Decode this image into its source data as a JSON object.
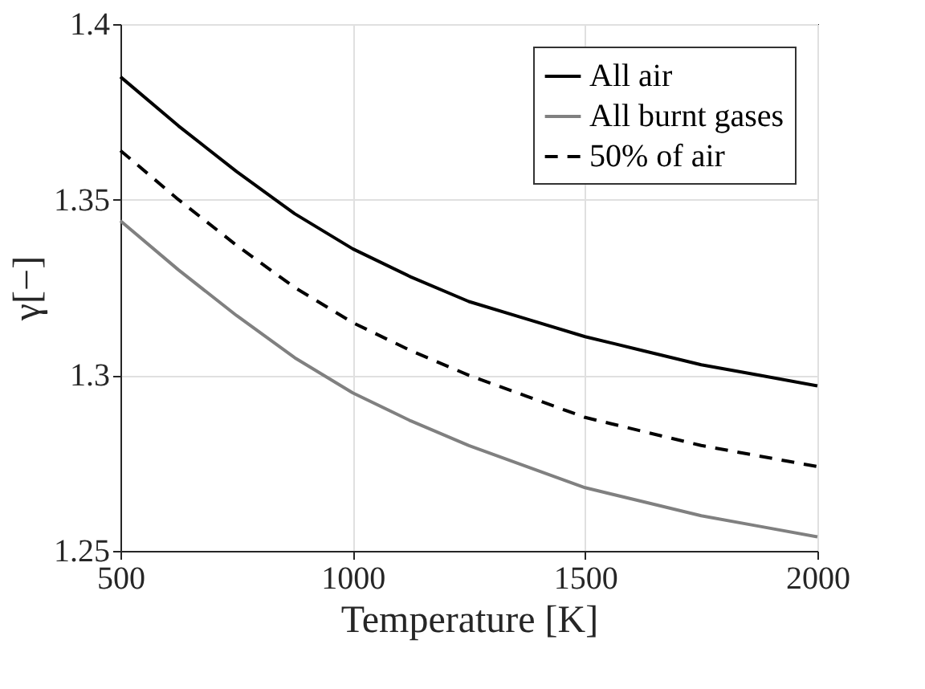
{
  "chart_data": {
    "type": "line",
    "xlabel": "Temperature [K]",
    "ylabel": "γ[−]",
    "x": [
      500,
      625,
      750,
      875,
      1000,
      1125,
      1250,
      1375,
      1500,
      1625,
      1750,
      1875,
      2000
    ],
    "series": [
      {
        "name": "All air",
        "color": "#000000",
        "line_style": "solid",
        "values": [
          1.385,
          1.371,
          1.358,
          1.346,
          1.336,
          1.328,
          1.321,
          1.316,
          1.311,
          1.307,
          1.303,
          1.3,
          1.297
        ]
      },
      {
        "name": "All burnt gases",
        "color": "#808080",
        "line_style": "solid",
        "values": [
          1.344,
          1.33,
          1.317,
          1.305,
          1.295,
          1.287,
          1.28,
          1.274,
          1.268,
          1.264,
          1.26,
          1.257,
          1.254
        ]
      },
      {
        "name": "50% of air",
        "color": "#000000",
        "line_style": "dashed",
        "values": [
          1.364,
          1.35,
          1.337,
          1.325,
          1.315,
          1.307,
          1.3,
          1.294,
          1.288,
          1.284,
          1.28,
          1.277,
          1.274
        ]
      }
    ],
    "xlim": [
      500,
      2000
    ],
    "xticks": [
      500,
      1000,
      1500,
      2000
    ],
    "ylim": [
      1.25,
      1.4
    ],
    "yticks": [
      1.25,
      1.3,
      1.35,
      1.4
    ],
    "grid": true,
    "legend": "top right",
    "marker": "none"
  }
}
